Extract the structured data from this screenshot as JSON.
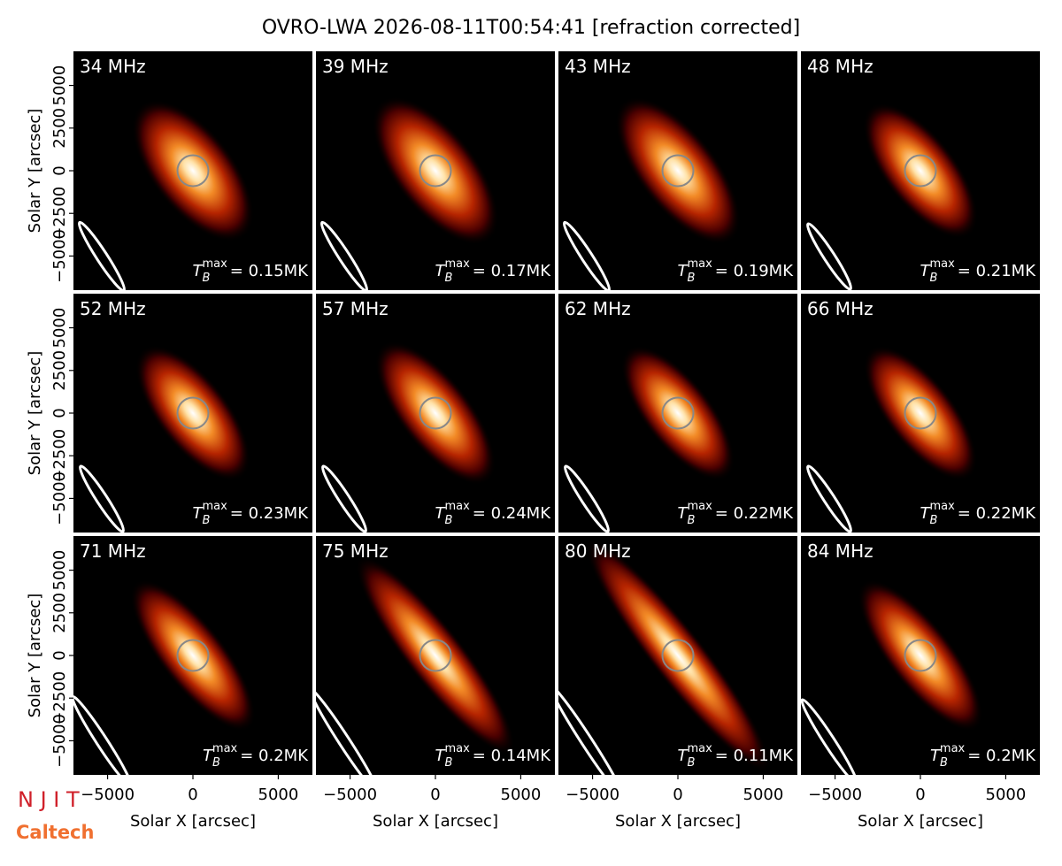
{
  "chart_data": {
    "type": "image_grid",
    "title": "OVRO-LWA 2026-08-11T00:54:41 [refraction corrected]",
    "x_label": "Solar X [arcsec]",
    "y_label": "Solar Y [arcsec]",
    "xlim": [
      -7000,
      7000
    ],
    "ylim": [
      -7000,
      7000
    ],
    "xticks": [
      {
        "value": -5000,
        "label": "−5000"
      },
      0,
      5000
    ],
    "yticks": [
      {
        "value": -5000,
        "label": "−5000"
      },
      {
        "value": -2500,
        "label": "−2500"
      },
      0,
      2500,
      5000
    ],
    "tmax_symbol": "T",
    "tmax_sub": "B",
    "tmax_sup": "max",
    "panels": [
      {
        "freq": "34 MHz",
        "tmax": "= 0.15MK"
      },
      {
        "freq": "39 MHz",
        "tmax": "= 0.17MK"
      },
      {
        "freq": "43 MHz",
        "tmax": "= 0.19MK"
      },
      {
        "freq": "48 MHz",
        "tmax": "= 0.21MK"
      },
      {
        "freq": "52 MHz",
        "tmax": "= 0.23MK"
      },
      {
        "freq": "57 MHz",
        "tmax": "= 0.24MK"
      },
      {
        "freq": "62 MHz",
        "tmax": "= 0.22MK"
      },
      {
        "freq": "66 MHz",
        "tmax": "= 0.22MK"
      },
      {
        "freq": "71 MHz",
        "tmax": "= 0.2MK"
      },
      {
        "freq": "75 MHz",
        "tmax": "= 0.14MK"
      },
      {
        "freq": "80 MHz",
        "tmax": "= 0.11MK"
      },
      {
        "freq": "84 MHz",
        "tmax": "= 0.2MK"
      }
    ],
    "logo_top": "N J I T",
    "logo_bottom": "Caltech"
  }
}
